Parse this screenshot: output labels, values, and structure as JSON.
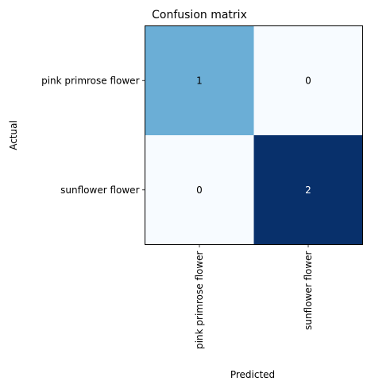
{
  "chart_data": {
    "type": "heatmap",
    "title": "Confusion matrix",
    "xlabel": "Predicted",
    "ylabel": "Actual",
    "x_categories": [
      "pink primrose flower",
      "sunflower flower"
    ],
    "y_categories": [
      "pink primrose flower",
      "sunflower flower"
    ],
    "values": [
      [
        1,
        0
      ],
      [
        0,
        2
      ]
    ],
    "colormap": "Blues",
    "color_range": [
      0,
      2
    ],
    "colors": {
      "min": "#f7fbff",
      "mid": "#6baed6",
      "max": "#08306b"
    },
    "grid": false
  }
}
